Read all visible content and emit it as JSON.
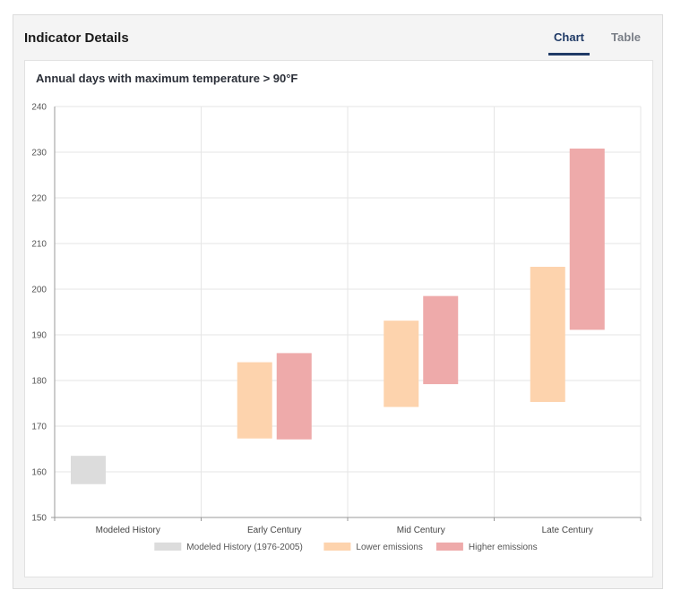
{
  "panel": {
    "title": "Indicator Details",
    "tabs": [
      {
        "label": "Chart",
        "active": true
      },
      {
        "label": "Table",
        "active": false
      }
    ]
  },
  "chart_data": {
    "type": "bar",
    "title": "Annual days with maximum temperature > 90°F",
    "xlabel": "",
    "ylabel": "",
    "ylim": [
      150,
      240
    ],
    "yticks": [
      150,
      160,
      170,
      180,
      190,
      200,
      210,
      220,
      230,
      240
    ],
    "categories": [
      "Modeled History",
      "Early Century",
      "Mid Century",
      "Late Century"
    ],
    "grid": true,
    "legend_position": "bottom",
    "series": [
      {
        "name": "Modeled History (1976-2005)",
        "color": "#dcdcdc",
        "ranges": [
          [
            157.3,
            163.5
          ],
          null,
          null,
          null
        ]
      },
      {
        "name": "Lower emissions",
        "color": "#fdd3ad",
        "ranges": [
          null,
          [
            167.3,
            184.0
          ],
          [
            174.2,
            193.1
          ],
          [
            175.3,
            204.9
          ]
        ]
      },
      {
        "name": "Higher emissions",
        "color": "#eeaaaa",
        "ranges": [
          null,
          [
            167.1,
            186.0
          ],
          [
            179.2,
            198.5
          ],
          [
            191.1,
            230.8
          ]
        ]
      }
    ]
  }
}
